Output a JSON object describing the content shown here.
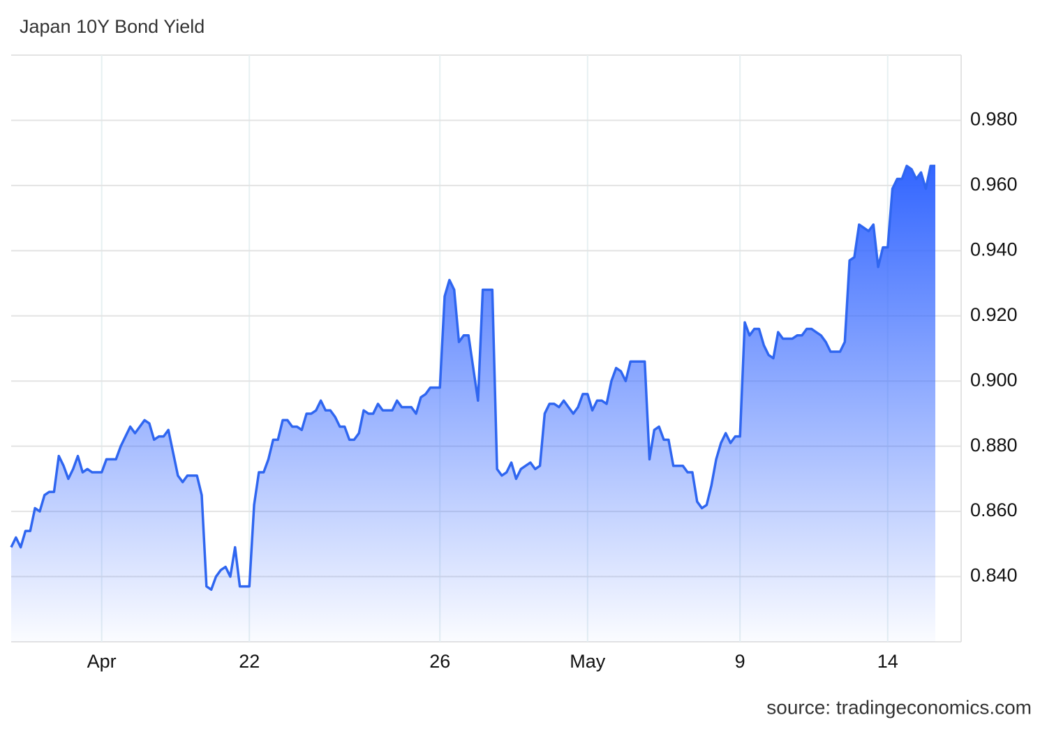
{
  "chart_data": {
    "type": "area",
    "title": "Japan 10Y Bond Yield",
    "source": "source: tradingeconomics.com",
    "color": "#2f66f0",
    "fill_color": "#3366ff",
    "grid": true,
    "ylim": [
      0.82,
      1.0
    ],
    "yticks": [
      {
        "value": 0.84,
        "label": "0.840"
      },
      {
        "value": 0.86,
        "label": "0.860"
      },
      {
        "value": 0.88,
        "label": "0.880"
      },
      {
        "value": 0.9,
        "label": "0.900"
      },
      {
        "value": 0.92,
        "label": "0.920"
      },
      {
        "value": 0.94,
        "label": "0.940"
      },
      {
        "value": 0.96,
        "label": "0.960"
      },
      {
        "value": 0.98,
        "label": "0.980"
      }
    ],
    "categories": [
      null,
      null,
      null,
      null,
      null,
      null,
      null,
      null,
      null,
      null,
      null,
      null,
      null,
      null,
      null,
      null,
      null,
      null,
      null,
      "Apr",
      null,
      null,
      null,
      null,
      null,
      null,
      null,
      null,
      null,
      null,
      null,
      null,
      null,
      null,
      null,
      null,
      null,
      null,
      null,
      null,
      null,
      null,
      null,
      null,
      null,
      null,
      null,
      null,
      null,
      null,
      "22",
      null,
      null,
      null,
      null,
      null,
      null,
      null,
      null,
      null,
      null,
      null,
      null,
      null,
      null,
      null,
      null,
      null,
      null,
      null,
      null,
      null,
      null,
      null,
      null,
      null,
      null,
      null,
      null,
      null,
      null,
      null,
      null,
      null,
      null,
      null,
      null,
      null,
      null,
      null,
      "26",
      null,
      null,
      null,
      null,
      null,
      null,
      null,
      null,
      null,
      null,
      null,
      null,
      null,
      null,
      null,
      null,
      null,
      null,
      null,
      null,
      null,
      null,
      null,
      null,
      null,
      null,
      null,
      null,
      null,
      null,
      "May",
      null,
      null,
      null,
      null,
      null,
      null,
      null,
      null,
      null,
      null,
      null,
      null,
      null,
      null,
      null,
      null,
      null,
      null,
      null,
      null,
      null,
      null,
      null,
      null,
      null,
      null,
      null,
      null,
      null,
      null,
      null,
      "9",
      null,
      null,
      null,
      null,
      null,
      null,
      null,
      null,
      null,
      null,
      null,
      null,
      null,
      null,
      null,
      null,
      null,
      null,
      null,
      null,
      null,
      null,
      null,
      null,
      null,
      null,
      null,
      null,
      null,
      null,
      "14",
      null,
      null,
      null,
      null,
      null,
      null,
      null,
      null,
      null,
      null
    ],
    "values": [
      0.849,
      0.852,
      0.849,
      0.854,
      0.854,
      0.861,
      0.86,
      0.865,
      0.866,
      0.866,
      0.877,
      0.874,
      0.87,
      0.873,
      0.877,
      0.872,
      0.873,
      0.872,
      0.872,
      0.872,
      0.876,
      0.876,
      0.876,
      0.88,
      0.883,
      0.886,
      0.884,
      0.886,
      0.888,
      0.887,
      0.882,
      0.883,
      0.883,
      0.885,
      0.878,
      0.871,
      0.869,
      0.871,
      0.871,
      0.871,
      0.865,
      0.837,
      0.836,
      0.84,
      0.842,
      0.843,
      0.84,
      0.849,
      0.837,
      0.837,
      0.837,
      0.862,
      0.872,
      0.872,
      0.876,
      0.882,
      0.882,
      0.888,
      0.888,
      0.886,
      0.886,
      0.885,
      0.89,
      0.89,
      0.891,
      0.894,
      0.891,
      0.891,
      0.889,
      0.886,
      0.886,
      0.882,
      0.882,
      0.884,
      0.891,
      0.89,
      0.89,
      0.893,
      0.891,
      0.891,
      0.891,
      0.894,
      0.892,
      0.892,
      0.892,
      0.89,
      0.895,
      0.896,
      0.898,
      0.898,
      0.898,
      0.926,
      0.931,
      0.928,
      0.912,
      0.914,
      0.914,
      0.904,
      0.894,
      0.928,
      0.928,
      0.928,
      0.873,
      0.871,
      0.872,
      0.875,
      0.87,
      0.873,
      0.874,
      0.875,
      0.873,
      0.874,
      0.89,
      0.893,
      0.893,
      0.892,
      0.894,
      0.892,
      0.89,
      0.892,
      0.896,
      0.896,
      0.891,
      0.894,
      0.894,
      0.893,
      0.9,
      0.904,
      0.903,
      0.9,
      0.906,
      0.906,
      0.906,
      0.906,
      0.876,
      0.885,
      0.886,
      0.882,
      0.882,
      0.874,
      0.874,
      0.874,
      0.872,
      0.872,
      0.863,
      0.861,
      0.862,
      0.868,
      0.876,
      0.881,
      0.884,
      0.881,
      0.883,
      0.883,
      0.918,
      0.914,
      0.916,
      0.916,
      0.911,
      0.908,
      0.907,
      0.915,
      0.913,
      0.913,
      0.913,
      0.914,
      0.914,
      0.916,
      0.916,
      0.915,
      0.914,
      0.912,
      0.909,
      0.909,
      0.909,
      0.912,
      0.937,
      0.938,
      0.948,
      0.947,
      0.946,
      0.948,
      0.935,
      0.941,
      0.941,
      0.959,
      0.962,
      0.962,
      0.966,
      0.965,
      0.962,
      0.964,
      0.959,
      0.966,
      0.966
    ]
  }
}
